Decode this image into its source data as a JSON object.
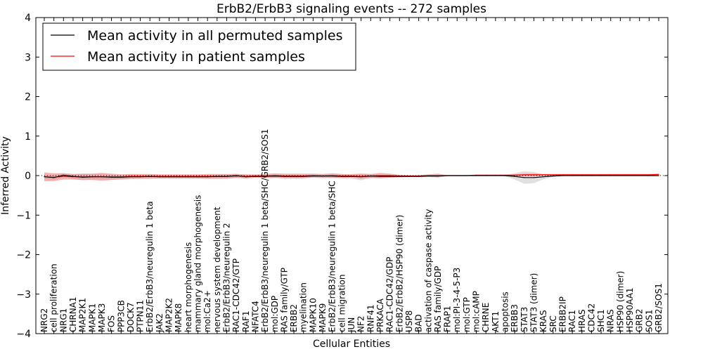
{
  "chart_data": {
    "type": "line",
    "title": "ErbB2/ErbB3 signaling events -- 272 samples",
    "xlabel": "Cellular Entities",
    "ylabel": "Inferred Activity",
    "ylim": [
      -4,
      4
    ],
    "yticks": [
      "4",
      "3",
      "2",
      "1",
      "0",
      "−1",
      "−2",
      "−3",
      "−4"
    ],
    "legend_placement": "top-left",
    "grid": false,
    "categories": [
      "NRG2",
      "cell proliferation",
      "NRG1",
      "CHRNA1",
      "MAP2K1",
      "MAPK1",
      "MAPK3",
      "FOS",
      "PPP3CB",
      "DOCK7",
      "PTPN11",
      "ErbB2/ErbB3/neuregulin 1 beta",
      "JAK2",
      "MAP2K2",
      "MAPK8",
      "heart morphogenesis",
      "mammary gland morphogenesis",
      "mol:Ca2+",
      "nervous system development",
      "ErbB2/ErbB3/neuregulin 2",
      "RAC1-CDC42/GTP",
      "RAF1",
      "NFATC4",
      "ErbB2/ErbB3/neuregulin 1 beta/SHC/GRB2/SOS1",
      "mol:GDP",
      "RAS family/GTP",
      "ERBB2",
      "myelination",
      "MAPK10",
      "MAPK9",
      "ErbB2/ErbB3/neuregulin 1 beta/SHC",
      "cell migration",
      "JUN",
      "NF2",
      "RNF41",
      "PRKACA",
      "RAC1-CDC42/GDP",
      "ErbB2/ErbB2/HSP90 (dimer)",
      "USP8",
      "BAD",
      "activation of caspase activity",
      "RAS family/GDP",
      "FRAP1",
      "mol:PI-3-4-5-P3",
      "mol:GTP",
      "mol:cAMP",
      "CHRNE",
      "AKT1",
      "apoptosis",
      "ERBB3",
      "STAT3",
      "STAT3 (dimer)",
      "KRAS",
      "SRC",
      "ERBB2IP",
      "RAC1",
      "HRAS",
      "CDC42",
      "SHC1",
      "NRAS",
      "HSP90 (dimer)",
      "HSP90AA1",
      "GRB2",
      "SOS1",
      "GRB2/SOS1"
    ],
    "series": [
      {
        "name": "Mean activity in all permuted samples",
        "color": "#000000",
        "band_color": "#bbbbbb",
        "values": [
          -0.03,
          -0.05,
          0.01,
          -0.02,
          -0.04,
          -0.03,
          -0.03,
          -0.04,
          -0.04,
          -0.03,
          -0.03,
          -0.02,
          -0.03,
          -0.03,
          -0.03,
          -0.03,
          -0.03,
          -0.03,
          -0.02,
          -0.02,
          0.0,
          -0.03,
          -0.02,
          -0.02,
          -0.01,
          -0.02,
          -0.02,
          -0.02,
          -0.01,
          -0.01,
          -0.01,
          -0.02,
          -0.02,
          -0.03,
          -0.01,
          -0.02,
          -0.02,
          -0.02,
          -0.02,
          -0.02,
          -0.01,
          -0.01,
          0.0,
          0.0,
          0.0,
          0.0,
          0.0,
          0.0,
          0.0,
          -0.02,
          -0.05,
          -0.05,
          -0.03,
          -0.01,
          0.0,
          0.0,
          0.0,
          0.0,
          0.0,
          0.0,
          0.0,
          0.0,
          0.0,
          0.0,
          0.0
        ],
        "band": [
          0.05,
          0.06,
          0.05,
          0.06,
          0.08,
          0.07,
          0.07,
          0.06,
          0.06,
          0.06,
          0.05,
          0.05,
          0.05,
          0.05,
          0.05,
          0.05,
          0.05,
          0.05,
          0.05,
          0.05,
          0.05,
          0.05,
          0.04,
          0.04,
          0.04,
          0.04,
          0.05,
          0.04,
          0.04,
          0.04,
          0.04,
          0.05,
          0.06,
          0.09,
          0.05,
          0.04,
          0.04,
          0.03,
          0.02,
          0.02,
          0.02,
          0.02,
          0.01,
          0.01,
          0.01,
          0.01,
          0.01,
          0.01,
          0.02,
          0.08,
          0.16,
          0.14,
          0.06,
          0.02,
          0.01,
          0.01,
          0.01,
          0.01,
          0.01,
          0.01,
          0.01,
          0.01,
          0.01,
          0.01,
          0.01
        ]
      },
      {
        "name": "Mean activity in patient samples",
        "color": "#ff0000",
        "band_color": "#f08080",
        "values": [
          -0.03,
          -0.04,
          -0.02,
          -0.03,
          -0.03,
          -0.03,
          -0.03,
          -0.03,
          -0.03,
          -0.02,
          -0.02,
          -0.02,
          -0.02,
          -0.02,
          -0.02,
          -0.02,
          -0.02,
          -0.02,
          -0.02,
          -0.02,
          -0.01,
          -0.02,
          -0.01,
          -0.01,
          0.0,
          -0.01,
          -0.01,
          -0.01,
          0.0,
          -0.01,
          0.0,
          -0.01,
          -0.01,
          -0.02,
          -0.01,
          0.0,
          0.0,
          -0.01,
          -0.01,
          -0.01,
          0.0,
          0.0,
          0.0,
          0.0,
          0.0,
          0.01,
          0.01,
          0.01,
          0.01,
          0.01,
          0.02,
          0.02,
          0.02,
          0.02,
          0.02,
          0.02,
          0.02,
          0.02,
          0.02,
          0.02,
          0.02,
          0.02,
          0.02,
          0.02,
          0.03
        ],
        "band": [
          0.11,
          0.1,
          0.08,
          0.07,
          0.08,
          0.08,
          0.1,
          0.08,
          0.06,
          0.06,
          0.06,
          0.06,
          0.05,
          0.05,
          0.05,
          0.05,
          0.05,
          0.06,
          0.06,
          0.06,
          0.05,
          0.05,
          0.04,
          0.05,
          0.06,
          0.06,
          0.06,
          0.06,
          0.05,
          0.05,
          0.06,
          0.05,
          0.04,
          0.06,
          0.05,
          0.07,
          0.05,
          0.03,
          0.02,
          0.02,
          0.03,
          0.05,
          0.01,
          0.01,
          0.01,
          0.01,
          0.01,
          0.01,
          0.01,
          0.02,
          0.03,
          0.03,
          0.02,
          0.02,
          0.02,
          0.02,
          0.02,
          0.02,
          0.02,
          0.02,
          0.02,
          0.02,
          0.02,
          0.02,
          0.02
        ]
      }
    ]
  }
}
